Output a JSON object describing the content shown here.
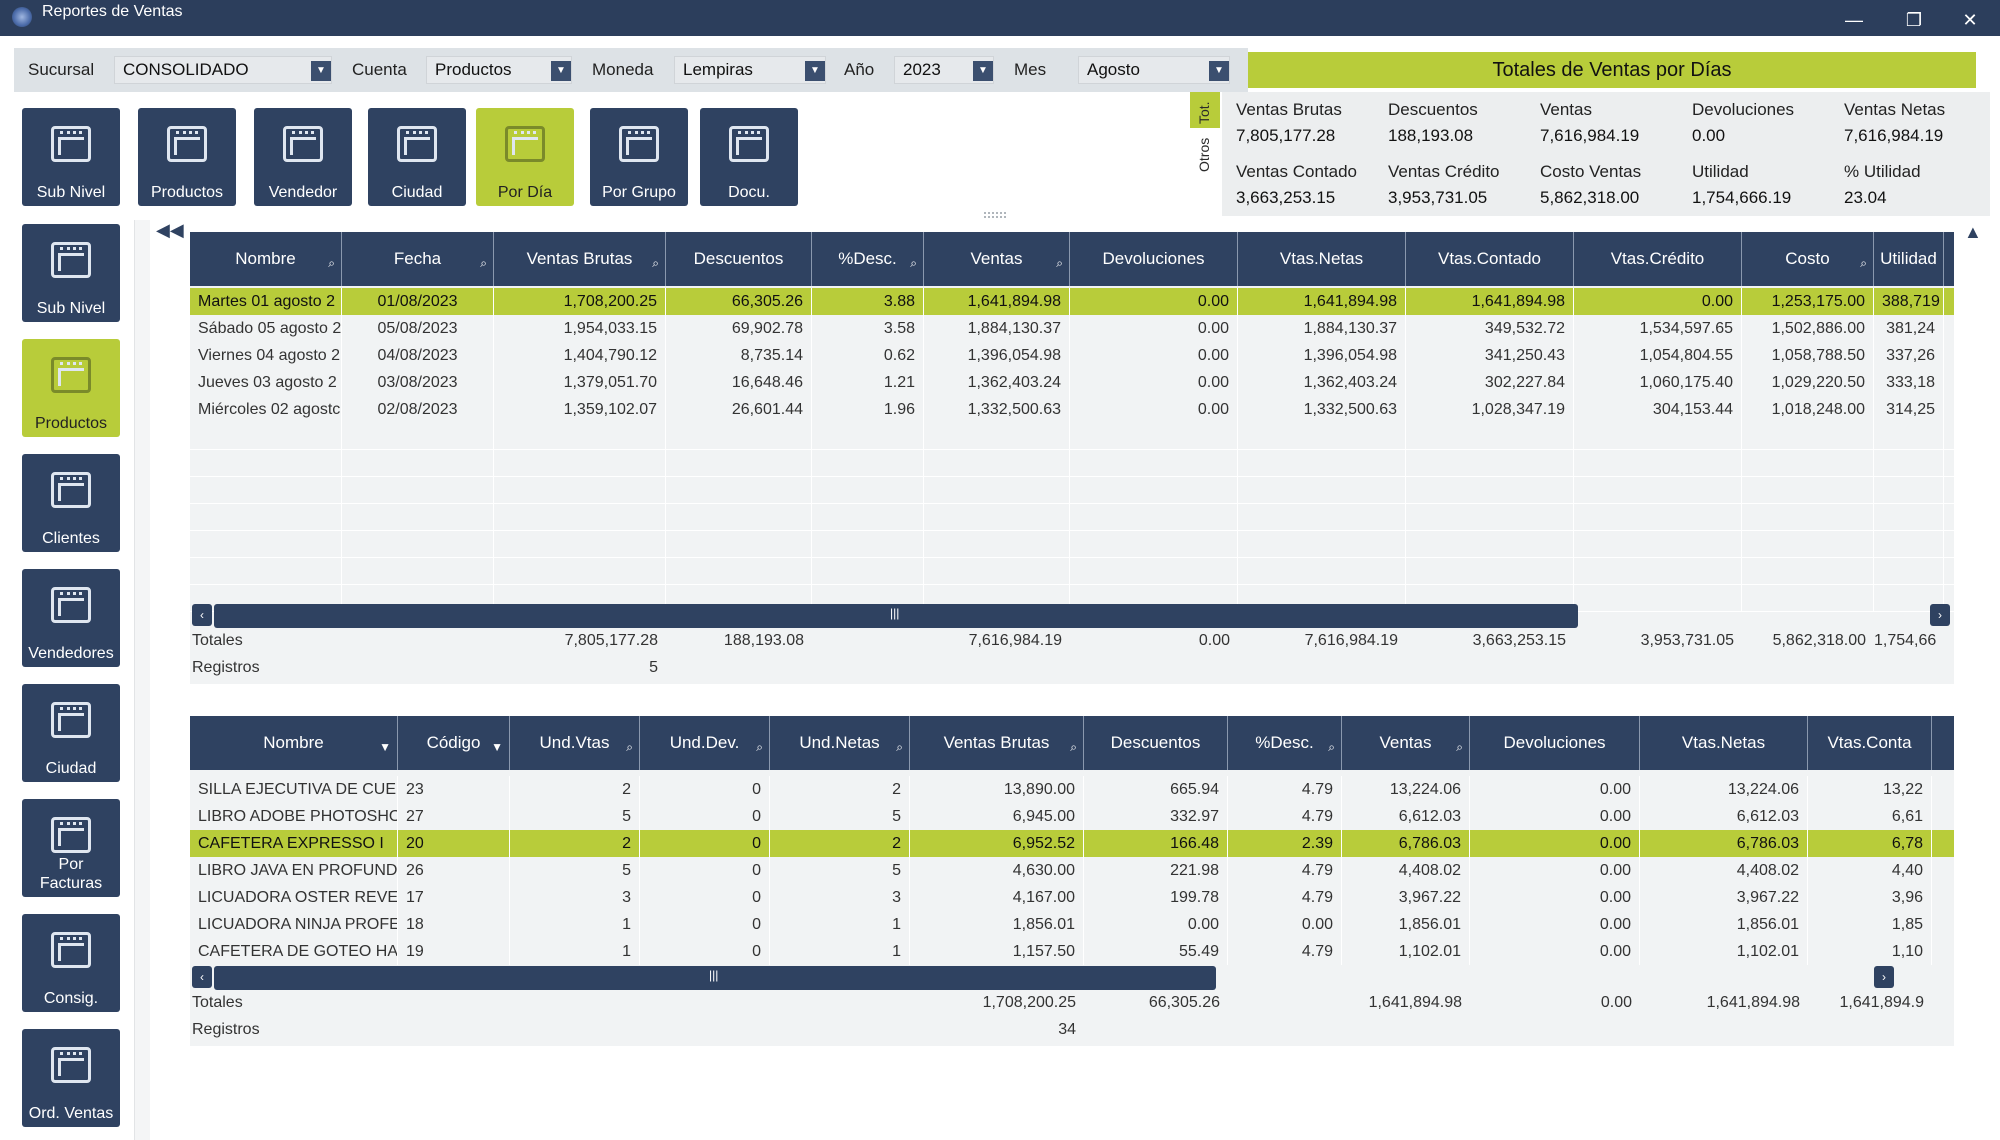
{
  "window": {
    "title": "Reportes de Ventas",
    "min": "—",
    "restore": "❐",
    "close": "✕"
  },
  "filters": {
    "sucursal_label": "Sucursal",
    "sucursal_value": "CONSOLIDADO",
    "cuenta_label": "Cuenta",
    "cuenta_value": "Productos",
    "moneda_label": "Moneda",
    "moneda_value": "Lempiras",
    "anio_label": "Año",
    "anio_value": "2023",
    "mes_label": "Mes",
    "mes_value": "Agosto"
  },
  "totals_panel": {
    "title": "Totales de Ventas por Días",
    "tab_tot": "Tot.",
    "tab_otros": "Otros",
    "items": [
      {
        "label": "Ventas Brutas",
        "value": "7,805,177.28"
      },
      {
        "label": "Descuentos",
        "value": "188,193.08"
      },
      {
        "label": "Ventas",
        "value": "7,616,984.19"
      },
      {
        "label": "Devoluciones",
        "value": "0.00"
      },
      {
        "label": "Ventas Netas",
        "value": "7,616,984.19"
      },
      {
        "label": "Ventas Contado",
        "value": "3,663,253.15"
      },
      {
        "label": "Ventas Crédito",
        "value": "3,953,731.05"
      },
      {
        "label": "Costo Ventas",
        "value": "5,862,318.00"
      },
      {
        "label": "Utilidad",
        "value": "1,754,666.19"
      },
      {
        "label": "% Utilidad",
        "value": "23.04"
      }
    ]
  },
  "top_buttons": [
    "Sub Nivel",
    "Productos",
    "Vendedor",
    "Ciudad",
    "Por Día",
    "Por Grupo",
    "Docu."
  ],
  "side_buttons": [
    "Sub Nivel",
    "Productos",
    "Clientes",
    "Vendedores",
    "Ciudad",
    "Por\nFacturas",
    "Consig.",
    "Ord. Ventas"
  ],
  "grid1": {
    "columns": [
      "Nombre",
      "Fecha",
      "Ventas Brutas",
      "Descuentos",
      "%Desc.",
      "Ventas",
      "Devoluciones",
      "Vtas.Netas",
      "Vtas.Contado",
      "Vtas.Crédito",
      "Costo",
      "Utilidad"
    ],
    "rows": [
      [
        "Martes 01 agosto 2",
        "01/08/2023",
        "1,708,200.25",
        "66,305.26",
        "3.88",
        "1,641,894.98",
        "0.00",
        "1,641,894.98",
        "1,641,894.98",
        "0.00",
        "1,253,175.00",
        "388,719"
      ],
      [
        "Sábado 05 agosto 2",
        "05/08/2023",
        "1,954,033.15",
        "69,902.78",
        "3.58",
        "1,884,130.37",
        "0.00",
        "1,884,130.37",
        "349,532.72",
        "1,534,597.65",
        "1,502,886.00",
        "381,24"
      ],
      [
        "Viernes 04 agosto 2",
        "04/08/2023",
        "1,404,790.12",
        "8,735.14",
        "0.62",
        "1,396,054.98",
        "0.00",
        "1,396,054.98",
        "341,250.43",
        "1,054,804.55",
        "1,058,788.50",
        "337,26"
      ],
      [
        "Jueves 03 agosto 2",
        "03/08/2023",
        "1,379,051.70",
        "16,648.46",
        "1.21",
        "1,362,403.24",
        "0.00",
        "1,362,403.24",
        "302,227.84",
        "1,060,175.40",
        "1,029,220.50",
        "333,18"
      ],
      [
        "Miércoles 02 agostc",
        "02/08/2023",
        "1,359,102.07",
        "26,601.44",
        "1.96",
        "1,332,500.63",
        "0.00",
        "1,332,500.63",
        "1,028,347.19",
        "304,153.44",
        "1,018,248.00",
        "314,25"
      ]
    ],
    "footer": {
      "totales_label": "Totales",
      "registros_label": "Registros",
      "registros": "5",
      "ventas_brutas": "7,805,177.28",
      "descuentos": "188,193.08",
      "ventas": "7,616,984.19",
      "devoluciones": "0.00",
      "vtas_netas": "7,616,984.19",
      "vtas_contado": "3,663,253.15",
      "vtas_credito": "3,953,731.05",
      "costo": "5,862,318.00",
      "utilidad": "1,754,66"
    }
  },
  "grid2": {
    "columns": [
      "Nombre",
      "Código",
      "Und.Vtas",
      "Und.Dev.",
      "Und.Netas",
      "Ventas Brutas",
      "Descuentos",
      "%Desc.",
      "Ventas",
      "Devoluciones",
      "Vtas.Netas",
      "Vtas.Conta"
    ],
    "rows": [
      [
        "SILLA EJECUTIVA DE CUEF",
        "23",
        "2",
        "0",
        "2",
        "13,890.00",
        "665.94",
        "4.79",
        "13,224.06",
        "0.00",
        "13,224.06",
        "13,22"
      ],
      [
        "LIBRO ADOBE PHOTOSHO",
        "27",
        "5",
        "0",
        "5",
        "6,945.00",
        "332.97",
        "4.79",
        "6,612.03",
        "0.00",
        "6,612.03",
        "6,61"
      ],
      [
        "CAFETERA EXPRESSO I",
        "20",
        "2",
        "0",
        "2",
        "6,952.52",
        "166.48",
        "2.39",
        "6,786.03",
        "0.00",
        "6,786.03",
        "6,78"
      ],
      [
        "LIBRO JAVA EN PROFUNDI",
        "26",
        "5",
        "0",
        "5",
        "4,630.00",
        "221.98",
        "4.79",
        "4,408.02",
        "0.00",
        "4,408.02",
        "4,40"
      ],
      [
        "LICUADORA OSTER REVEI",
        "17",
        "3",
        "0",
        "3",
        "4,167.00",
        "199.78",
        "4.79",
        "3,967.22",
        "0.00",
        "3,967.22",
        "3,96"
      ],
      [
        "LICUADORA NINJA PROFE",
        "18",
        "1",
        "0",
        "1",
        "1,856.01",
        "0.00",
        "0.00",
        "1,856.01",
        "0.00",
        "1,856.01",
        "1,85"
      ],
      [
        "CAFETERA DE GOTEO HAI",
        "19",
        "1",
        "0",
        "1",
        "1,157.50",
        "55.49",
        "4.79",
        "1,102.01",
        "0.00",
        "1,102.01",
        "1,10"
      ]
    ],
    "footer": {
      "totales_label": "Totales",
      "registros_label": "Registros",
      "registros": "34",
      "ventas_brutas": "1,708,200.25",
      "descuentos": "66,305.26",
      "ventas": "1,641,894.98",
      "devoluciones": "0.00",
      "vtas_netas": "1,641,894.98",
      "vtas_conta": "1,641,894.9"
    }
  },
  "colors": {
    "navy": "#2f4261",
    "lime": "#b8cc3a",
    "titlebar": "#2c3e5c"
  }
}
